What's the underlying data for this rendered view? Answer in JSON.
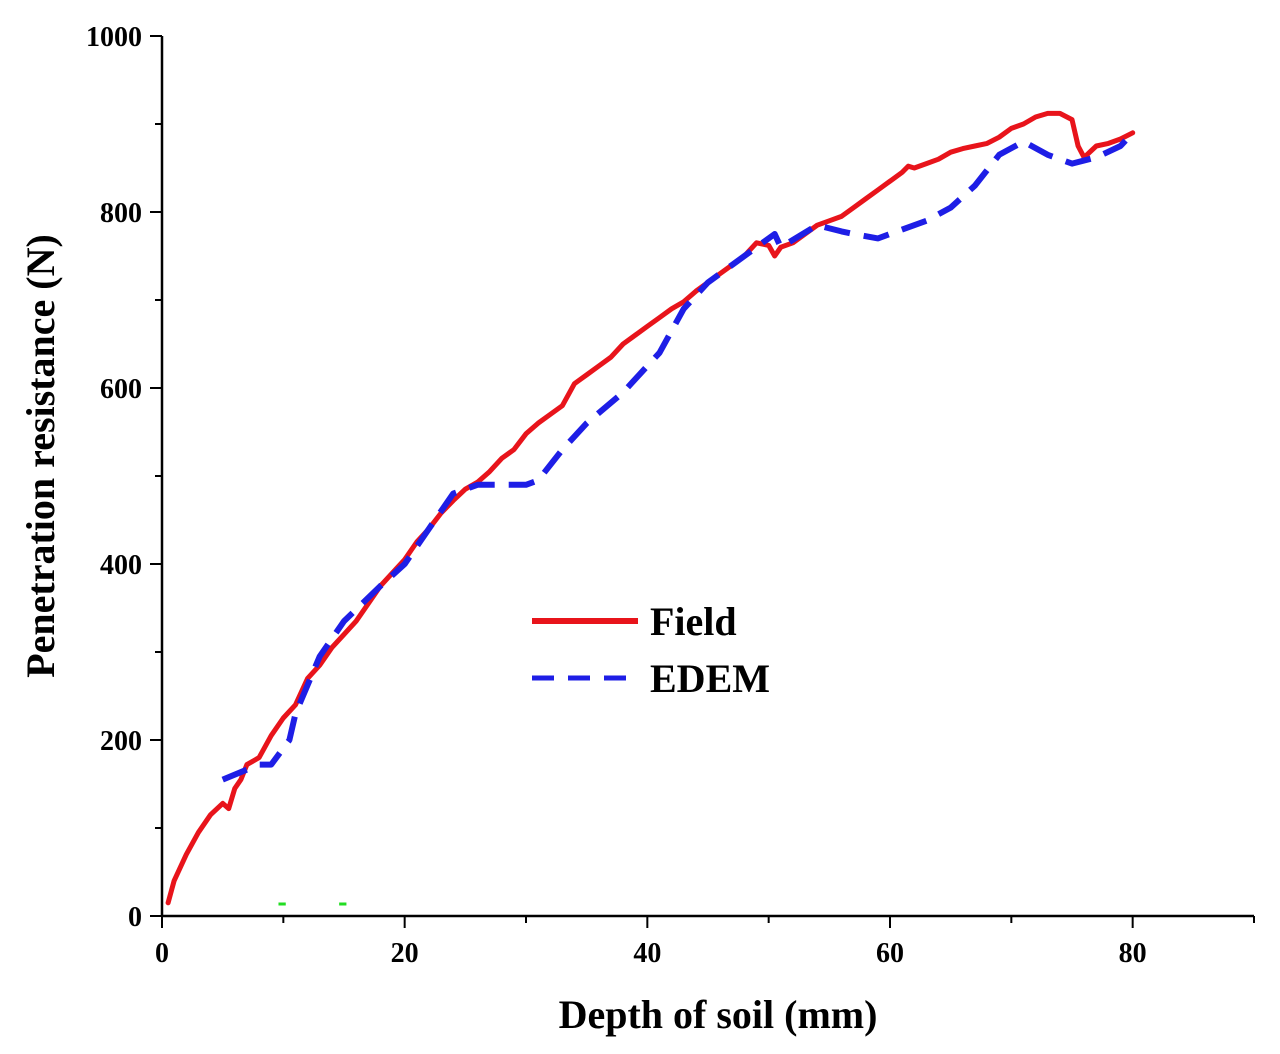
{
  "chart_data": {
    "type": "line",
    "title": "",
    "xlabel": "Depth of soil (mm)",
    "ylabel": "Penetration resistance (N)",
    "xlim": [
      0,
      90
    ],
    "ylim": [
      0,
      1000
    ],
    "xticks": [
      0,
      20,
      40,
      60,
      80
    ],
    "yticks": [
      0,
      200,
      400,
      600,
      800,
      1000
    ],
    "xtick_labels": [
      "0",
      "20",
      "40",
      "60",
      "80"
    ],
    "ytick_labels": [
      "0",
      "200",
      "400",
      "600",
      "800",
      "1000"
    ],
    "legend_position": "center",
    "series": [
      {
        "name": "Field",
        "color": "#e8141b",
        "style": "solid",
        "x": [
          0.5,
          1,
          2,
          3,
          4,
          5,
          5.5,
          6,
          6.5,
          7,
          8,
          9,
          10,
          11,
          12,
          13,
          14,
          15,
          16,
          17,
          18,
          19,
          20,
          21,
          22,
          23,
          24,
          25,
          26,
          27,
          28,
          29,
          30,
          31,
          32,
          33,
          34,
          35,
          36,
          37,
          38,
          39,
          40,
          41,
          42,
          43,
          44,
          45,
          46,
          47,
          48,
          49,
          50,
          50.5,
          51,
          52,
          53,
          54,
          55,
          56,
          57,
          58,
          59,
          60,
          61,
          61.5,
          62,
          63,
          64,
          65,
          66,
          67,
          68,
          69,
          70,
          71,
          72,
          73,
          74,
          75,
          75.5,
          76,
          77,
          78,
          79,
          80
        ],
        "values": [
          15,
          40,
          70,
          95,
          115,
          128,
          122,
          145,
          155,
          172,
          180,
          205,
          225,
          240,
          270,
          285,
          305,
          320,
          335,
          355,
          375,
          390,
          405,
          425,
          440,
          458,
          472,
          485,
          493,
          505,
          520,
          530,
          548,
          560,
          570,
          580,
          605,
          615,
          625,
          635,
          650,
          660,
          670,
          680,
          690,
          698,
          710,
          720,
          730,
          740,
          750,
          765,
          762,
          750,
          760,
          765,
          775,
          785,
          790,
          795,
          805,
          815,
          825,
          835,
          845,
          852,
          850,
          855,
          860,
          868,
          872,
          875,
          878,
          885,
          895,
          900,
          908,
          912,
          912,
          905,
          875,
          862,
          875,
          878,
          883,
          890
        ]
      },
      {
        "name": "EDEM",
        "color": "#1e1ee6",
        "style": "dashed",
        "x": [
          5,
          8,
          9,
          10.5,
          11,
          13,
          15,
          18,
          20,
          22,
          24,
          26,
          28,
          30,
          31,
          33,
          35,
          38,
          40,
          41,
          43,
          45,
          47,
          49,
          50.5,
          51,
          54,
          56,
          57,
          59,
          61,
          63,
          65,
          67,
          69,
          71,
          73,
          75,
          77,
          79,
          80
        ],
        "values": [
          155,
          172,
          172,
          200,
          230,
          295,
          335,
          375,
          400,
          440,
          480,
          490,
          490,
          490,
          495,
          530,
          560,
          595,
          625,
          640,
          690,
          720,
          740,
          760,
          775,
          760,
          785,
          778,
          775,
          770,
          780,
          790,
          805,
          830,
          865,
          880,
          865,
          855,
          862,
          875,
          890
        ]
      }
    ],
    "annotations": []
  }
}
